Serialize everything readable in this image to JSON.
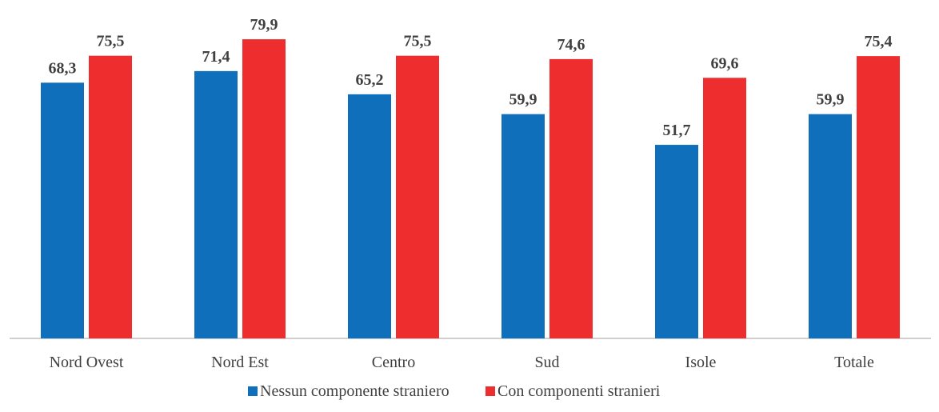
{
  "chart_data": {
    "type": "bar",
    "categories": [
      "Nord Ovest",
      "Nord Est",
      "Centro",
      "Sud",
      "Isole",
      "Totale"
    ],
    "series": [
      {
        "name": "Nessun componente straniero",
        "color": "#0f6fba",
        "values": [
          68.3,
          71.4,
          65.2,
          59.9,
          51.7,
          59.9
        ],
        "labels": [
          "68,3",
          "71,4",
          "65,2",
          "59,9",
          "51,7",
          "59,9"
        ]
      },
      {
        "name": "Con componenti stranieri",
        "color": "#ee2e2e",
        "values": [
          75.5,
          79.9,
          75.5,
          74.6,
          69.6,
          75.4
        ],
        "labels": [
          "75,5",
          "79,9",
          "75,5",
          "74,6",
          "69,6",
          "75,4"
        ]
      }
    ],
    "ylim": [
      0,
      85
    ],
    "grid": false,
    "legend_position": "bottom"
  }
}
